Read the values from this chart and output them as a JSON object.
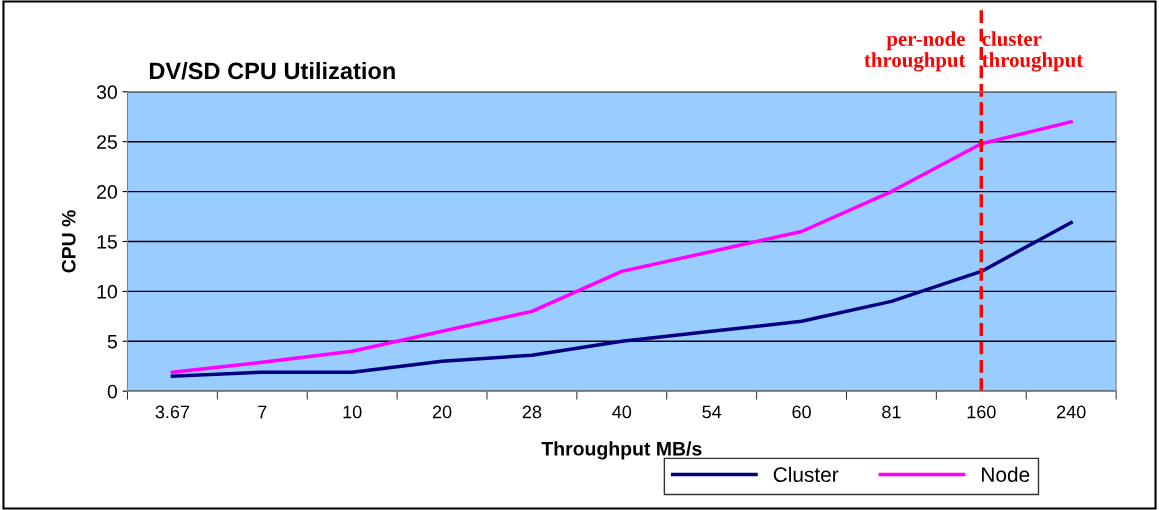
{
  "chart_data": {
    "type": "line",
    "title": "DV/SD CPU Utilization",
    "xlabel": "Throughput MB/s",
    "ylabel": "CPU %",
    "categories": [
      "3.67",
      "7",
      "10",
      "20",
      "28",
      "40",
      "54",
      "60",
      "81",
      "160",
      "240"
    ],
    "series": [
      {
        "name": "Cluster",
        "color": "#000080",
        "values": [
          1.5,
          1.9,
          1.9,
          3,
          3.6,
          5,
          6,
          7,
          9,
          12,
          16.9
        ]
      },
      {
        "name": "Node",
        "color": "#ff00ff",
        "values": [
          1.9,
          2.9,
          4,
          6,
          8,
          12,
          14,
          16,
          20,
          24.8,
          27
        ]
      }
    ],
    "ylim": [
      0,
      30
    ],
    "yticks": [
      0,
      5,
      10,
      15,
      20,
      25,
      30
    ],
    "grid": "y",
    "legend": "bottom right",
    "marker": "none",
    "line_style": "solid",
    "ref_lines": [
      {
        "axis": "x",
        "value": "160",
        "color": "#ff0000",
        "line_style": "dashed"
      }
    ],
    "annotations": [
      "per-node throughput",
      "cluster throughput"
    ]
  }
}
